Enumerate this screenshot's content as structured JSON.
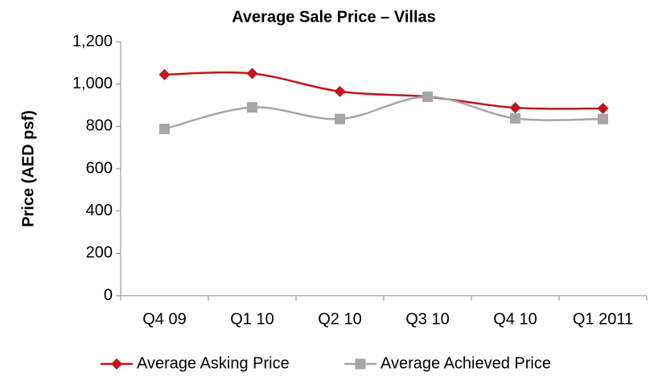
{
  "chart_data": {
    "type": "line",
    "title": "Average Sale Price – Villas",
    "y_label": "Price (AED psf)",
    "categories": [
      "Q4 09",
      "Q1 10",
      "Q2 10",
      "Q3 10",
      "Q4 10",
      "Q1 2011"
    ],
    "series": [
      {
        "name": "Average Asking Price",
        "color": "#c0161c",
        "marker": "diamond",
        "values": [
          1045,
          1050,
          965,
          940,
          888,
          885
        ]
      },
      {
        "name": "Average Achieved Price",
        "color": "#a6a6a6",
        "marker": "square",
        "values": [
          788,
          890,
          835,
          940,
          838,
          835
        ]
      }
    ],
    "ylim": [
      0,
      1200
    ],
    "yticks": [
      0,
      200,
      400,
      600,
      800,
      {
        "value": 1000,
        "label": "1,000"
      },
      {
        "value": 1200,
        "label": "1,200"
      }
    ],
    "grid": false,
    "smooth": true,
    "legend": "bottom"
  }
}
